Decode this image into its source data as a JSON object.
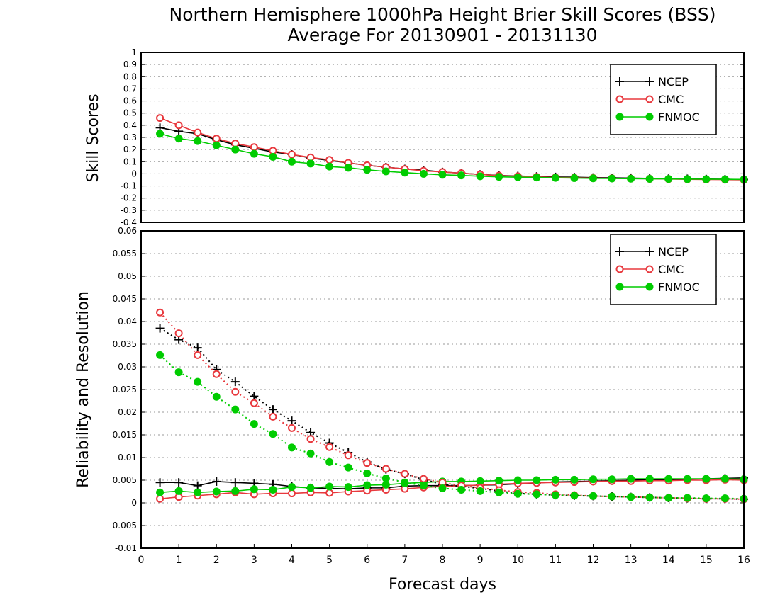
{
  "title_line1": "Northern Hemisphere 1000hPa Height Brier Skill Scores (BSS)",
  "title_line2": "Average For 20130901 - 20131130",
  "colors": {
    "NCEP": "#000000",
    "CMC": "#e8383d",
    "FNMOC": "#00cc00"
  },
  "chart_data": [
    {
      "type": "line",
      "ylabel": "Skill Scores",
      "ylim": [
        -0.4,
        1
      ],
      "yticks": [
        "1",
        "0.9",
        "0.8",
        "0.7",
        "0.6",
        "0.5",
        "0.4",
        "0.3",
        "0.2",
        "0.1",
        "0",
        "-0.1",
        "-0.2",
        "-0.3",
        "-0.4"
      ],
      "grid": true,
      "legend": "top-right",
      "x": [
        0.5,
        1,
        1.5,
        2,
        2.5,
        3,
        3.5,
        4,
        4.5,
        5,
        5.5,
        6,
        6.5,
        7,
        7.5,
        8,
        8.5,
        9,
        9.5,
        10,
        10.5,
        11,
        11.5,
        12,
        12.5,
        13,
        13.5,
        14,
        14.5,
        15,
        15.5,
        16
      ],
      "series": [
        {
          "name": "NCEP",
          "marker": "plus",
          "style": "solid",
          "values": [
            0.38,
            0.35,
            0.33,
            0.28,
            0.24,
            0.21,
            0.18,
            0.16,
            0.13,
            0.11,
            0.09,
            0.07,
            0.055,
            0.04,
            0.03,
            0.015,
            0.005,
            -0.005,
            -0.013,
            -0.018,
            -0.022,
            -0.026,
            -0.028,
            -0.031,
            -0.033,
            -0.035,
            -0.038,
            -0.04,
            -0.041,
            -0.043,
            -0.045,
            -0.047
          ]
        },
        {
          "name": "CMC",
          "marker": "open-circle",
          "style": "solid",
          "values": [
            0.46,
            0.4,
            0.34,
            0.29,
            0.25,
            0.22,
            0.19,
            0.16,
            0.135,
            0.115,
            0.09,
            0.07,
            0.055,
            0.04,
            0.025,
            0.015,
            0.005,
            -0.005,
            -0.015,
            -0.02,
            -0.025,
            -0.03,
            -0.032,
            -0.035,
            -0.037,
            -0.039,
            -0.041,
            -0.043,
            -0.045,
            -0.047,
            -0.048,
            -0.05
          ]
        },
        {
          "name": "FNMOC",
          "marker": "filled-circle",
          "style": "solid",
          "values": [
            0.33,
            0.29,
            0.27,
            0.235,
            0.2,
            0.165,
            0.14,
            0.1,
            0.085,
            0.06,
            0.05,
            0.033,
            0.02,
            0.01,
            0.0,
            -0.008,
            -0.013,
            -0.02,
            -0.025,
            -0.028,
            -0.03,
            -0.033,
            -0.035,
            -0.037,
            -0.038,
            -0.04,
            -0.041,
            -0.042,
            -0.043,
            -0.044,
            -0.045,
            -0.046
          ]
        }
      ]
    },
    {
      "type": "line",
      "ylabel": "Reliability and Resolution",
      "xlabel": "Forecast days",
      "ylim": [
        -0.01,
        0.06
      ],
      "xlim": [
        0,
        16
      ],
      "yticks": [
        "0.06",
        "0.055",
        "0.05",
        "0.045",
        "0.04",
        "0.035",
        "0.03",
        "0.025",
        "0.02",
        "0.015",
        "0.01",
        "0.005",
        "0",
        "-0.005",
        "-0.01"
      ],
      "xticks": [
        "0",
        "1",
        "2",
        "3",
        "4",
        "5",
        "6",
        "7",
        "8",
        "9",
        "10",
        "11",
        "12",
        "13",
        "14",
        "15",
        "16"
      ],
      "grid": true,
      "legend": "top-right",
      "x": [
        0.5,
        1,
        1.5,
        2,
        2.5,
        3,
        3.5,
        4,
        4.5,
        5,
        5.5,
        6,
        6.5,
        7,
        7.5,
        8,
        8.5,
        9,
        9.5,
        10,
        10.5,
        11,
        11.5,
        12,
        12.5,
        13,
        13.5,
        14,
        14.5,
        15,
        15.5,
        16
      ],
      "series": [
        {
          "name": "NCEP",
          "component": "reliability",
          "marker": "plus",
          "style": "solid",
          "values": [
            0.0045,
            0.0045,
            0.0038,
            0.0047,
            0.0045,
            0.0043,
            0.0041,
            0.0036,
            0.0033,
            0.0032,
            0.0031,
            0.0033,
            0.0033,
            0.0037,
            0.0038,
            0.0038,
            0.0038,
            0.0039,
            0.004,
            0.0042,
            0.0044,
            0.0046,
            0.0047,
            0.0048,
            0.0049,
            0.005,
            0.0051,
            0.0051,
            0.0052,
            0.0053,
            0.0054,
            0.0055
          ]
        },
        {
          "name": "CMC",
          "component": "reliability",
          "marker": "open-circle",
          "style": "solid",
          "values": [
            0.0009,
            0.0013,
            0.0016,
            0.0019,
            0.0023,
            0.0019,
            0.0021,
            0.0021,
            0.0023,
            0.0022,
            0.0025,
            0.0027,
            0.0029,
            0.0031,
            0.0034,
            0.0036,
            0.0038,
            0.0039,
            0.0041,
            0.0043,
            0.0044,
            0.0045,
            0.0046,
            0.0047,
            0.0048,
            0.0048,
            0.0049,
            0.0049,
            0.005,
            0.005,
            0.0051,
            0.005
          ]
        },
        {
          "name": "FNMOC",
          "component": "reliability",
          "marker": "filled-circle",
          "style": "solid",
          "values": [
            0.0023,
            0.0026,
            0.0023,
            0.0025,
            0.0026,
            0.003,
            0.0029,
            0.0035,
            0.0033,
            0.0036,
            0.0035,
            0.0039,
            0.004,
            0.0043,
            0.0045,
            0.0047,
            0.0047,
            0.0048,
            0.0049,
            0.005,
            0.005,
            0.0051,
            0.0051,
            0.0052,
            0.0052,
            0.0053,
            0.0053,
            0.0053,
            0.0053,
            0.0053,
            0.0053,
            0.0052
          ]
        },
        {
          "name": "NCEP",
          "component": "resolution",
          "marker": "plus",
          "style": "dotted",
          "values": [
            0.0385,
            0.036,
            0.0342,
            0.0294,
            0.0267,
            0.0235,
            0.0206,
            0.0181,
            0.0155,
            0.0132,
            0.0111,
            0.009,
            0.0074,
            0.0064,
            0.0051,
            0.0041,
            0.0036,
            0.0032,
            0.0026,
            0.0021,
            0.0019,
            0.0017,
            0.0016,
            0.0015,
            0.0014,
            0.0013,
            0.0012,
            0.0011,
            0.001,
            0.0009,
            0.0009,
            0.0008
          ]
        },
        {
          "name": "CMC",
          "component": "resolution",
          "marker": "open-circle",
          "style": "dotted",
          "values": [
            0.042,
            0.0374,
            0.0326,
            0.0284,
            0.0245,
            0.022,
            0.019,
            0.0165,
            0.0141,
            0.0123,
            0.0105,
            0.0088,
            0.0075,
            0.0064,
            0.0053,
            0.0045,
            0.0038,
            0.0033,
            0.0028,
            0.0024,
            0.0022,
            0.0019,
            0.0017,
            0.0015,
            0.0014,
            0.0013,
            0.0012,
            0.0011,
            0.001,
            0.0009,
            0.0009,
            0.0008
          ]
        },
        {
          "name": "FNMOC",
          "component": "resolution",
          "marker": "filled-circle",
          "style": "dotted",
          "values": [
            0.0326,
            0.0288,
            0.0267,
            0.0234,
            0.0206,
            0.0174,
            0.0152,
            0.0122,
            0.0109,
            0.009,
            0.0078,
            0.0065,
            0.0054,
            0.0045,
            0.0038,
            0.0032,
            0.0029,
            0.0026,
            0.0023,
            0.002,
            0.0019,
            0.0017,
            0.0016,
            0.0015,
            0.0014,
            0.0013,
            0.0012,
            0.0011,
            0.0011,
            0.001,
            0.001,
            0.0009
          ]
        }
      ]
    }
  ]
}
